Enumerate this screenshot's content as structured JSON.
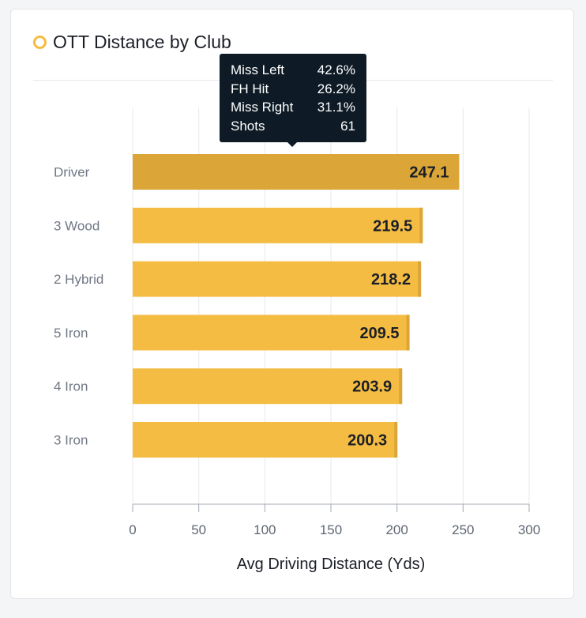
{
  "card": {
    "title": "OTT Distance by Club"
  },
  "chart_data": {
    "type": "bar",
    "orientation": "horizontal",
    "categories": [
      "Driver",
      "3 Wood",
      "2 Hybrid",
      "5 Iron",
      "4 Iron",
      "3 Iron"
    ],
    "values": [
      247.1,
      219.5,
      218.2,
      209.5,
      203.9,
      200.3
    ],
    "value_labels": [
      "247.1",
      "219.5",
      "218.2",
      "209.5",
      "203.9",
      "200.3"
    ],
    "xlabel": "Avg Driving Distance (Yds)",
    "ylabel": "",
    "xlim": [
      0,
      300
    ],
    "xticks": [
      "0",
      "50",
      "100",
      "150",
      "200",
      "250",
      "300"
    ],
    "grid": "vertical",
    "highlighted_index": 0,
    "colors": {
      "bar": "#f4bc42",
      "bar_edge": "#dba637",
      "bar_highlight": "#dba637",
      "grid": "#e6e8ec",
      "tick_label": "#5f6672",
      "category_label": "#707784",
      "value_label": "#1b1f27",
      "axis": "#a3a8b2"
    }
  },
  "tooltip": {
    "rows": [
      {
        "label": "Miss Left",
        "value": "42.6%"
      },
      {
        "label": "FH Hit",
        "value": "26.2%"
      },
      {
        "label": "Miss Right",
        "value": "31.1%"
      },
      {
        "label": "Shots",
        "value": "61"
      }
    ]
  }
}
